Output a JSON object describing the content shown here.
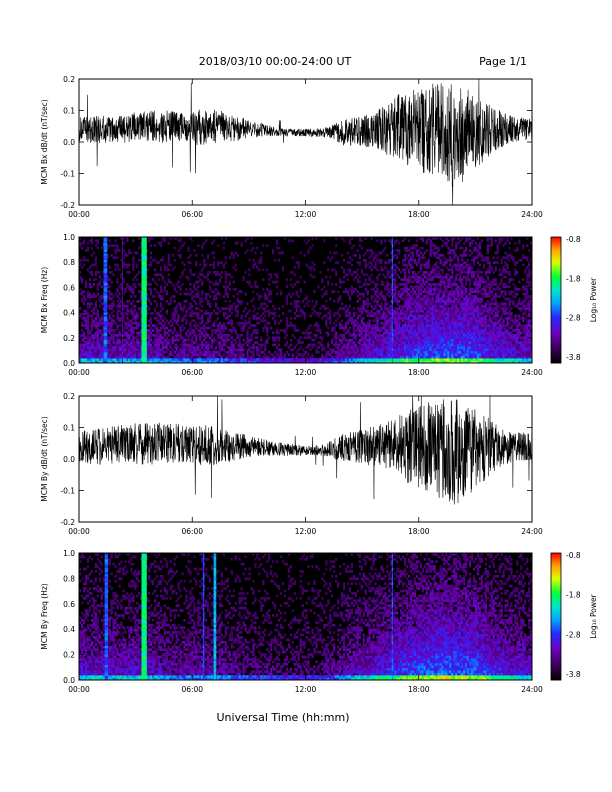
{
  "header": {
    "title": "2018/03/10  00:00-24:00 UT",
    "page": "Page 1/1"
  },
  "colorbar": {
    "label": "Log₁₀ Power",
    "ticks": [
      "-0.8",
      "-1.8",
      "-2.8",
      "-3.8"
    ]
  },
  "chart_data": [
    {
      "type": "line",
      "title": "",
      "ylabel": "MCM Bx dB/dt (nT/sec)",
      "xlabel": "",
      "x_ticks": [
        "00:00",
        "06:00",
        "12:00",
        "18:00",
        "24:00"
      ],
      "x_range_hours": [
        0,
        24
      ],
      "ylim": [
        -0.2,
        0.2
      ],
      "y_ticks": [
        "0.2",
        "0.1",
        "0.0",
        "-0.1",
        "-0.2"
      ],
      "series": [
        {
          "x_hours": [
            0,
            1,
            2,
            3,
            4,
            5,
            6,
            7,
            8,
            9,
            10,
            11,
            12,
            13,
            14,
            15,
            16,
            17,
            18,
            19,
            20,
            21,
            22,
            23,
            24
          ],
          "center": [
            0.04,
            0.04,
            0.04,
            0.045,
            0.05,
            0.05,
            0.045,
            0.05,
            0.045,
            0.04,
            0.035,
            0.03,
            0.03,
            0.03,
            0.03,
            0.035,
            0.04,
            0.045,
            0.04,
            0.03,
            0.02,
            0.03,
            0.04,
            0.04,
            0.04
          ],
          "amplitude": [
            0.04,
            0.045,
            0.04,
            0.05,
            0.055,
            0.05,
            0.055,
            0.06,
            0.045,
            0.03,
            0.018,
            0.012,
            0.012,
            0.015,
            0.04,
            0.05,
            0.07,
            0.11,
            0.13,
            0.16,
            0.17,
            0.12,
            0.07,
            0.04,
            0.035
          ]
        }
      ]
    },
    {
      "type": "heatmap",
      "title": "",
      "ylabel": "MCM Bx Freq (Hz)",
      "xlabel": "",
      "x_ticks": [
        "00:00",
        "06:00",
        "12:00",
        "18:00",
        "24:00"
      ],
      "x_range_hours": [
        0,
        24
      ],
      "ylim": [
        0,
        1.0
      ],
      "y_ticks": [
        "1.0",
        "0.8",
        "0.6",
        "0.4",
        "0.2",
        "0.0"
      ],
      "zlim": [
        -3.8,
        -0.8
      ],
      "activity_hours": [
        0,
        1,
        2,
        3,
        4,
        5,
        6,
        7,
        8,
        9,
        10,
        11,
        12,
        13,
        14,
        15,
        16,
        17,
        18,
        19,
        20,
        21,
        22,
        23,
        24
      ],
      "activity_level": [
        0.55,
        0.55,
        0.5,
        0.55,
        0.5,
        0.4,
        0.4,
        0.45,
        0.35,
        0.3,
        0.25,
        0.2,
        0.2,
        0.25,
        0.4,
        0.55,
        0.65,
        0.75,
        0.85,
        0.9,
        0.9,
        0.85,
        0.7,
        0.6,
        0.55
      ],
      "vertical_bands": [
        {
          "hour": 1.4,
          "width_h": 0.2,
          "log_power": -2.6
        },
        {
          "hour": 2.3,
          "width_h": 0.05,
          "log_power": -3.2
        },
        {
          "hour": 3.45,
          "width_h": 0.28,
          "log_power": -1.9
        },
        {
          "hour": 16.6,
          "width_h": 0.06,
          "log_power": -2.6
        }
      ]
    },
    {
      "type": "line",
      "title": "",
      "ylabel": "MCM By dB/dt (nT/sec)",
      "xlabel": "",
      "x_ticks": [
        "00:00",
        "06:00",
        "12:00",
        "18:00",
        "24:00"
      ],
      "x_range_hours": [
        0,
        24
      ],
      "ylim": [
        -0.2,
        0.2
      ],
      "y_ticks": [
        "0.2",
        "0.1",
        "0.0",
        "-0.1",
        "-0.2"
      ],
      "series": [
        {
          "x_hours": [
            0,
            1,
            2,
            3,
            4,
            5,
            6,
            7,
            8,
            9,
            10,
            11,
            12,
            13,
            14,
            15,
            16,
            17,
            18,
            19,
            20,
            21,
            22,
            23,
            24
          ],
          "center": [
            0.04,
            0.04,
            0.045,
            0.05,
            0.05,
            0.05,
            0.045,
            0.045,
            0.04,
            0.04,
            0.035,
            0.03,
            0.025,
            0.03,
            0.035,
            0.04,
            0.04,
            0.04,
            0.035,
            0.03,
            0.02,
            0.03,
            0.04,
            0.04,
            0.04
          ],
          "amplitude": [
            0.05,
            0.06,
            0.06,
            0.07,
            0.07,
            0.065,
            0.06,
            0.065,
            0.05,
            0.035,
            0.025,
            0.02,
            0.015,
            0.02,
            0.045,
            0.055,
            0.07,
            0.1,
            0.14,
            0.16,
            0.17,
            0.13,
            0.08,
            0.05,
            0.04
          ]
        }
      ]
    },
    {
      "type": "heatmap",
      "title": "",
      "ylabel": "MCM By Freq (Hz)",
      "xlabel": "",
      "x_ticks": [
        "00:00",
        "06:00",
        "12:00",
        "18:00",
        "24:00"
      ],
      "x_range_hours": [
        0,
        24
      ],
      "ylim": [
        0,
        1.0
      ],
      "y_ticks": [
        "1.0",
        "0.8",
        "0.6",
        "0.4",
        "0.2",
        "0.0"
      ],
      "zlim": [
        -3.8,
        -0.8
      ],
      "activity_hours": [
        0,
        1,
        2,
        3,
        4,
        5,
        6,
        7,
        8,
        9,
        10,
        11,
        12,
        13,
        14,
        15,
        16,
        17,
        18,
        19,
        20,
        21,
        22,
        23,
        24
      ],
      "activity_level": [
        0.6,
        0.6,
        0.55,
        0.6,
        0.55,
        0.45,
        0.45,
        0.5,
        0.4,
        0.35,
        0.3,
        0.25,
        0.25,
        0.3,
        0.45,
        0.6,
        0.7,
        0.8,
        0.9,
        0.95,
        0.95,
        0.9,
        0.75,
        0.65,
        0.6
      ],
      "vertical_bands": [
        {
          "hour": 1.45,
          "width_h": 0.18,
          "log_power": -2.6
        },
        {
          "hour": 3.45,
          "width_h": 0.28,
          "log_power": -1.9
        },
        {
          "hour": 6.6,
          "width_h": 0.08,
          "log_power": -2.7
        },
        {
          "hour": 7.2,
          "width_h": 0.14,
          "log_power": -2.3
        },
        {
          "hour": 16.6,
          "width_h": 0.06,
          "log_power": -2.6
        }
      ]
    }
  ],
  "footer": {
    "xlabel": "Universal Time (hh:mm)"
  }
}
